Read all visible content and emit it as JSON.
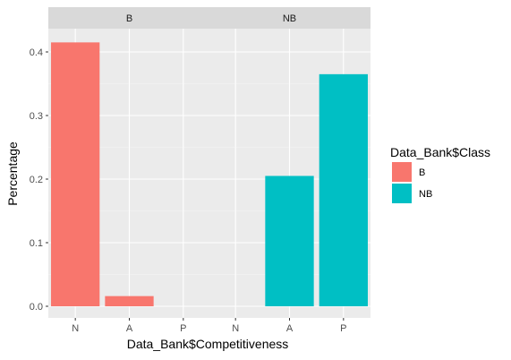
{
  "chart_data": {
    "type": "bar",
    "facet_variable": "Data_Bank$Class",
    "panels": [
      {
        "strip_label": "B",
        "categories": [
          "N",
          "A",
          "P"
        ],
        "values": [
          0.415,
          0.016,
          0
        ],
        "fill_series": "B"
      },
      {
        "strip_label": "NB",
        "categories": [
          "N",
          "A",
          "P"
        ],
        "values": [
          0,
          0.205,
          0.365
        ],
        "fill_series": "NB"
      }
    ],
    "xlabel": "Data_Bank$Competitiveness",
    "ylabel": "Percentage",
    "ylim": [
      0,
      0.44
    ],
    "yticks": [
      0.0,
      0.1,
      0.2,
      0.3,
      0.4
    ],
    "ytick_labels": [
      "0.0",
      "0.1",
      "0.2",
      "0.3",
      "0.4"
    ],
    "grid": true,
    "legend": {
      "title": "Data_Bank$Class",
      "placement": "right",
      "entries": [
        {
          "label": "B",
          "color": "#F8766D"
        },
        {
          "label": "NB",
          "color": "#00BFC4"
        }
      ]
    },
    "colors": {
      "B": "#F8766D",
      "NB": "#00BFC4"
    }
  }
}
